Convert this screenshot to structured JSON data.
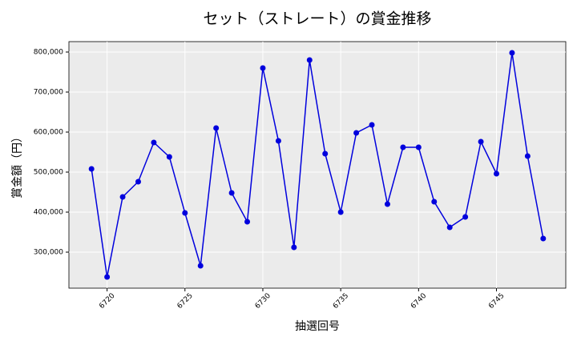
{
  "chart_data": {
    "type": "line",
    "title": "セット（ストレート）の賞金推移",
    "x_label": "抽選回号",
    "y_label": "賞金額（円）",
    "x": [
      6719,
      6720,
      6721,
      6722,
      6723,
      6724,
      6725,
      6726,
      6727,
      6728,
      6729,
      6730,
      6731,
      6732,
      6733,
      6734,
      6735,
      6736,
      6737,
      6738,
      6739,
      6740,
      6741,
      6742,
      6743,
      6744,
      6745,
      6746,
      6747,
      6748
    ],
    "series": [
      {
        "name": "賞金",
        "color": "#0000dd",
        "values": [
          508000,
          238000,
          438000,
          476000,
          574000,
          538000,
          398000,
          266000,
          610000,
          448000,
          376000,
          760000,
          578000,
          312000,
          780000,
          546000,
          400000,
          598000,
          618000,
          420000,
          562000,
          562000,
          426000,
          362000,
          388000,
          576000,
          496000,
          798000,
          540000,
          334000
        ]
      }
    ],
    "xlim": [
      6717.55,
      6749.45
    ],
    "ylim": [
      210000,
      826000
    ],
    "xticks": [
      6720,
      6725,
      6730,
      6735,
      6740,
      6745
    ],
    "yticks": [
      {
        "value": 300000,
        "label": "300,000"
      },
      {
        "value": 400000,
        "label": "400,000"
      },
      {
        "value": 500000,
        "label": "500,000"
      },
      {
        "value": 600000,
        "label": "600,000"
      },
      {
        "value": 700000,
        "label": "700,000"
      },
      {
        "value": 800000,
        "label": "800,000"
      }
    ],
    "grid": true
  }
}
